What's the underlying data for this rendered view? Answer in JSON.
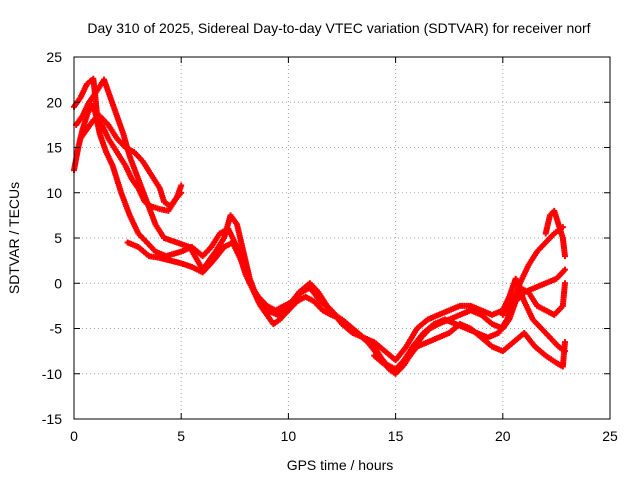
{
  "chart_data": {
    "type": "scatter",
    "title": "Day 310 of 2025, Sidereal Day-to-day VTEC variation (SDTVAR) for receiver norf",
    "xlabel": "GPS time / hours",
    "ylabel": "SDTVAR / TECUs",
    "xlim": [
      0,
      25
    ],
    "ylim": [
      -15,
      25
    ],
    "xticks": [
      0,
      5,
      10,
      15,
      20,
      25
    ],
    "yticks": [
      -15,
      -10,
      -5,
      0,
      5,
      10,
      15,
      20,
      25
    ],
    "grid": true,
    "marker": "+",
    "color": "#ff0000",
    "series": [
      {
        "name": "trace-1",
        "points": [
          [
            0.0,
            19.5
          ],
          [
            0.3,
            20.5
          ],
          [
            0.6,
            22.0
          ],
          [
            0.9,
            22.6
          ],
          [
            1.0,
            20.5
          ],
          [
            1.1,
            18.0
          ],
          [
            1.3,
            17.5
          ],
          [
            1.6,
            16.0
          ],
          [
            2.0,
            14.5
          ],
          [
            2.4,
            13.0
          ],
          [
            2.7,
            11.5
          ],
          [
            3.0,
            10.5
          ],
          [
            3.3,
            9.0
          ],
          [
            3.6,
            8.5
          ],
          [
            4.0,
            8.2
          ],
          [
            4.4,
            8.0
          ],
          [
            4.8,
            9.5
          ],
          [
            5.0,
            10.8
          ]
        ]
      },
      {
        "name": "trace-2",
        "points": [
          [
            0.0,
            12.5
          ],
          [
            0.2,
            15.0
          ],
          [
            0.4,
            17.0
          ],
          [
            0.6,
            18.5
          ],
          [
            0.8,
            19.8
          ],
          [
            1.0,
            18.8
          ],
          [
            1.2,
            16.5
          ],
          [
            1.5,
            14.5
          ],
          [
            1.8,
            13.0
          ],
          [
            2.2,
            10.0
          ],
          [
            2.6,
            7.5
          ],
          [
            3.0,
            5.5
          ],
          [
            3.4,
            4.5
          ],
          [
            3.8,
            3.5
          ],
          [
            4.3,
            3.0
          ],
          [
            5.0,
            3.5
          ],
          [
            5.5,
            4.0
          ],
          [
            6.0,
            3.0
          ],
          [
            6.4,
            4.0
          ],
          [
            6.8,
            5.5
          ],
          [
            7.2,
            6.0
          ],
          [
            7.6,
            4.0
          ],
          [
            8.0,
            1.0
          ],
          [
            8.4,
            -1.0
          ],
          [
            8.7,
            -2.5
          ],
          [
            9.0,
            -3.5
          ],
          [
            9.3,
            -4.5
          ],
          [
            9.6,
            -4.0
          ],
          [
            10.0,
            -3.0
          ],
          [
            10.4,
            -2.0
          ],
          [
            10.8,
            -1.5
          ],
          [
            11.2,
            -2.0
          ],
          [
            11.6,
            -3.0
          ],
          [
            12.0,
            -3.5
          ],
          [
            12.5,
            -4.0
          ],
          [
            13.0,
            -5.0
          ],
          [
            13.5,
            -6.0
          ],
          [
            14.0,
            -7.0
          ],
          [
            14.4,
            -8.5
          ],
          [
            14.7,
            -9.5
          ],
          [
            15.0,
            -10.0
          ],
          [
            15.4,
            -9.0
          ],
          [
            15.8,
            -7.5
          ],
          [
            16.2,
            -6.0
          ],
          [
            16.6,
            -5.0
          ],
          [
            17.0,
            -4.5
          ],
          [
            17.5,
            -4.0
          ],
          [
            18.0,
            -3.5
          ],
          [
            18.5,
            -3.0
          ],
          [
            19.0,
            -3.5
          ],
          [
            19.5,
            -4.5
          ],
          [
            20.0,
            -5.0
          ],
          [
            20.3,
            -4.0
          ],
          [
            20.6,
            -2.0
          ],
          [
            21.0,
            -1.0
          ],
          [
            21.5,
            -0.5
          ],
          [
            22.0,
            0.0
          ],
          [
            22.5,
            0.5
          ],
          [
            22.9,
            1.5
          ]
        ]
      },
      {
        "name": "trace-3",
        "points": [
          [
            0.1,
            17.5
          ],
          [
            0.4,
            18.5
          ],
          [
            0.7,
            20.0
          ],
          [
            1.0,
            21.0
          ],
          [
            1.4,
            22.5
          ],
          [
            1.7,
            20.5
          ],
          [
            2.0,
            18.5
          ],
          [
            2.3,
            16.5
          ],
          [
            2.6,
            14.0
          ],
          [
            3.0,
            11.5
          ],
          [
            3.4,
            9.0
          ],
          [
            3.8,
            6.5
          ],
          [
            4.2,
            5.0
          ],
          [
            4.8,
            4.5
          ],
          [
            5.4,
            4.0
          ],
          [
            6.0,
            1.5
          ],
          [
            6.3,
            2.5
          ],
          [
            6.6,
            3.5
          ],
          [
            7.0,
            5.0
          ],
          [
            7.3,
            7.5
          ],
          [
            7.6,
            6.5
          ],
          [
            7.9,
            3.5
          ],
          [
            8.2,
            0.5
          ],
          [
            8.6,
            -2.0
          ],
          [
            9.0,
            -3.0
          ],
          [
            9.5,
            -3.5
          ],
          [
            10.0,
            -2.5
          ],
          [
            10.5,
            -1.0
          ],
          [
            11.0,
            0.0
          ],
          [
            11.4,
            -1.0
          ],
          [
            11.8,
            -2.5
          ],
          [
            12.2,
            -3.5
          ],
          [
            12.7,
            -4.5
          ],
          [
            13.2,
            -5.5
          ],
          [
            13.7,
            -6.5
          ],
          [
            14.2,
            -8.0
          ],
          [
            14.6,
            -9.0
          ],
          [
            15.0,
            -9.5
          ],
          [
            15.4,
            -8.5
          ],
          [
            15.8,
            -7.0
          ],
          [
            16.3,
            -5.5
          ],
          [
            16.8,
            -4.5
          ],
          [
            17.3,
            -4.0
          ],
          [
            17.8,
            -4.5
          ],
          [
            18.3,
            -5.0
          ],
          [
            18.8,
            -5.5
          ],
          [
            19.3,
            -6.0
          ],
          [
            19.8,
            -5.5
          ],
          [
            20.2,
            -4.0
          ],
          [
            20.5,
            -2.0
          ],
          [
            20.8,
            0.0
          ],
          [
            21.2,
            2.0
          ],
          [
            21.6,
            3.5
          ],
          [
            22.0,
            4.5
          ],
          [
            22.4,
            5.5
          ],
          [
            22.8,
            6.2
          ]
        ]
      },
      {
        "name": "trace-4",
        "points": [
          [
            0.3,
            16.0
          ],
          [
            0.6,
            17.0
          ],
          [
            0.9,
            18.0
          ],
          [
            1.2,
            18.5
          ],
          [
            1.6,
            17.5
          ],
          [
            2.0,
            16.0
          ],
          [
            2.4,
            15.0
          ],
          [
            2.8,
            14.5
          ],
          [
            3.2,
            13.5
          ],
          [
            3.6,
            12.0
          ],
          [
            4.0,
            10.5
          ],
          [
            4.2,
            9.0
          ],
          [
            4.5,
            8.5
          ],
          [
            4.8,
            9.5
          ],
          [
            5.0,
            10.0
          ]
        ]
      },
      {
        "name": "trace-5",
        "points": [
          [
            2.5,
            4.5
          ],
          [
            3.0,
            4.0
          ],
          [
            3.5,
            3.0
          ],
          [
            4.0,
            2.8
          ],
          [
            4.5,
            2.5
          ],
          [
            5.0,
            2.2
          ],
          [
            5.5,
            1.8
          ],
          [
            6.0,
            1.2
          ],
          [
            6.5,
            2.5
          ],
          [
            7.0,
            4.0
          ],
          [
            7.4,
            4.5
          ],
          [
            7.8,
            2.5
          ],
          [
            8.2,
            0.0
          ],
          [
            8.6,
            -1.5
          ],
          [
            9.0,
            -2.5
          ],
          [
            9.4,
            -3.0
          ],
          [
            9.8,
            -2.5
          ],
          [
            10.2,
            -2.0
          ],
          [
            10.6,
            -1.0
          ],
          [
            11.0,
            -0.5
          ],
          [
            11.5,
            -2.0
          ],
          [
            12.0,
            -3.0
          ],
          [
            12.5,
            -4.5
          ],
          [
            13.0,
            -5.5
          ],
          [
            13.5,
            -6.0
          ],
          [
            14.0,
            -6.5
          ],
          [
            14.5,
            -7.5
          ],
          [
            15.0,
            -8.5
          ],
          [
            15.5,
            -7.0
          ],
          [
            16.0,
            -5.0
          ],
          [
            16.5,
            -4.0
          ],
          [
            17.0,
            -3.5
          ],
          [
            17.5,
            -3.0
          ],
          [
            18.0,
            -2.5
          ],
          [
            18.5,
            -2.5
          ],
          [
            19.0,
            -3.0
          ],
          [
            19.5,
            -3.5
          ],
          [
            20.0,
            -3.0
          ],
          [
            20.3,
            -1.5
          ],
          [
            20.6,
            0.5
          ],
          [
            21.0,
            -2.0
          ],
          [
            21.4,
            -4.0
          ],
          [
            21.8,
            -5.0
          ],
          [
            22.2,
            -6.0
          ],
          [
            22.6,
            -7.0
          ],
          [
            22.9,
            -7.5
          ]
        ]
      },
      {
        "name": "trace-6",
        "points": [
          [
            14.0,
            -8.0
          ],
          [
            14.5,
            -9.0
          ],
          [
            15.0,
            -9.8
          ],
          [
            15.5,
            -8.5
          ],
          [
            16.0,
            -7.0
          ],
          [
            16.5,
            -6.5
          ],
          [
            17.0,
            -6.0
          ],
          [
            17.5,
            -5.5
          ],
          [
            18.0,
            -4.5
          ],
          [
            18.5,
            -5.0
          ],
          [
            19.0,
            -6.0
          ],
          [
            19.5,
            -7.0
          ],
          [
            20.0,
            -7.5
          ],
          [
            20.5,
            -6.5
          ],
          [
            21.0,
            -5.5
          ],
          [
            21.5,
            -7.0
          ],
          [
            22.0,
            -8.0
          ],
          [
            22.5,
            -8.8
          ],
          [
            22.8,
            -9.2
          ],
          [
            22.9,
            -6.5
          ]
        ]
      },
      {
        "name": "trace-7",
        "points": [
          [
            20.0,
            -3.5
          ],
          [
            20.4,
            -2.0
          ],
          [
            20.8,
            -0.5
          ],
          [
            21.2,
            -1.0
          ],
          [
            21.6,
            -2.5
          ],
          [
            22.0,
            -3.0
          ],
          [
            22.4,
            -3.5
          ],
          [
            22.8,
            -2.5
          ],
          [
            22.9,
            0.0
          ]
        ]
      },
      {
        "name": "trace-8",
        "points": [
          [
            22.0,
            5.5
          ],
          [
            22.2,
            7.5
          ],
          [
            22.4,
            8.0
          ],
          [
            22.6,
            6.5
          ],
          [
            22.8,
            5.0
          ],
          [
            22.9,
            3.0
          ]
        ]
      }
    ]
  }
}
